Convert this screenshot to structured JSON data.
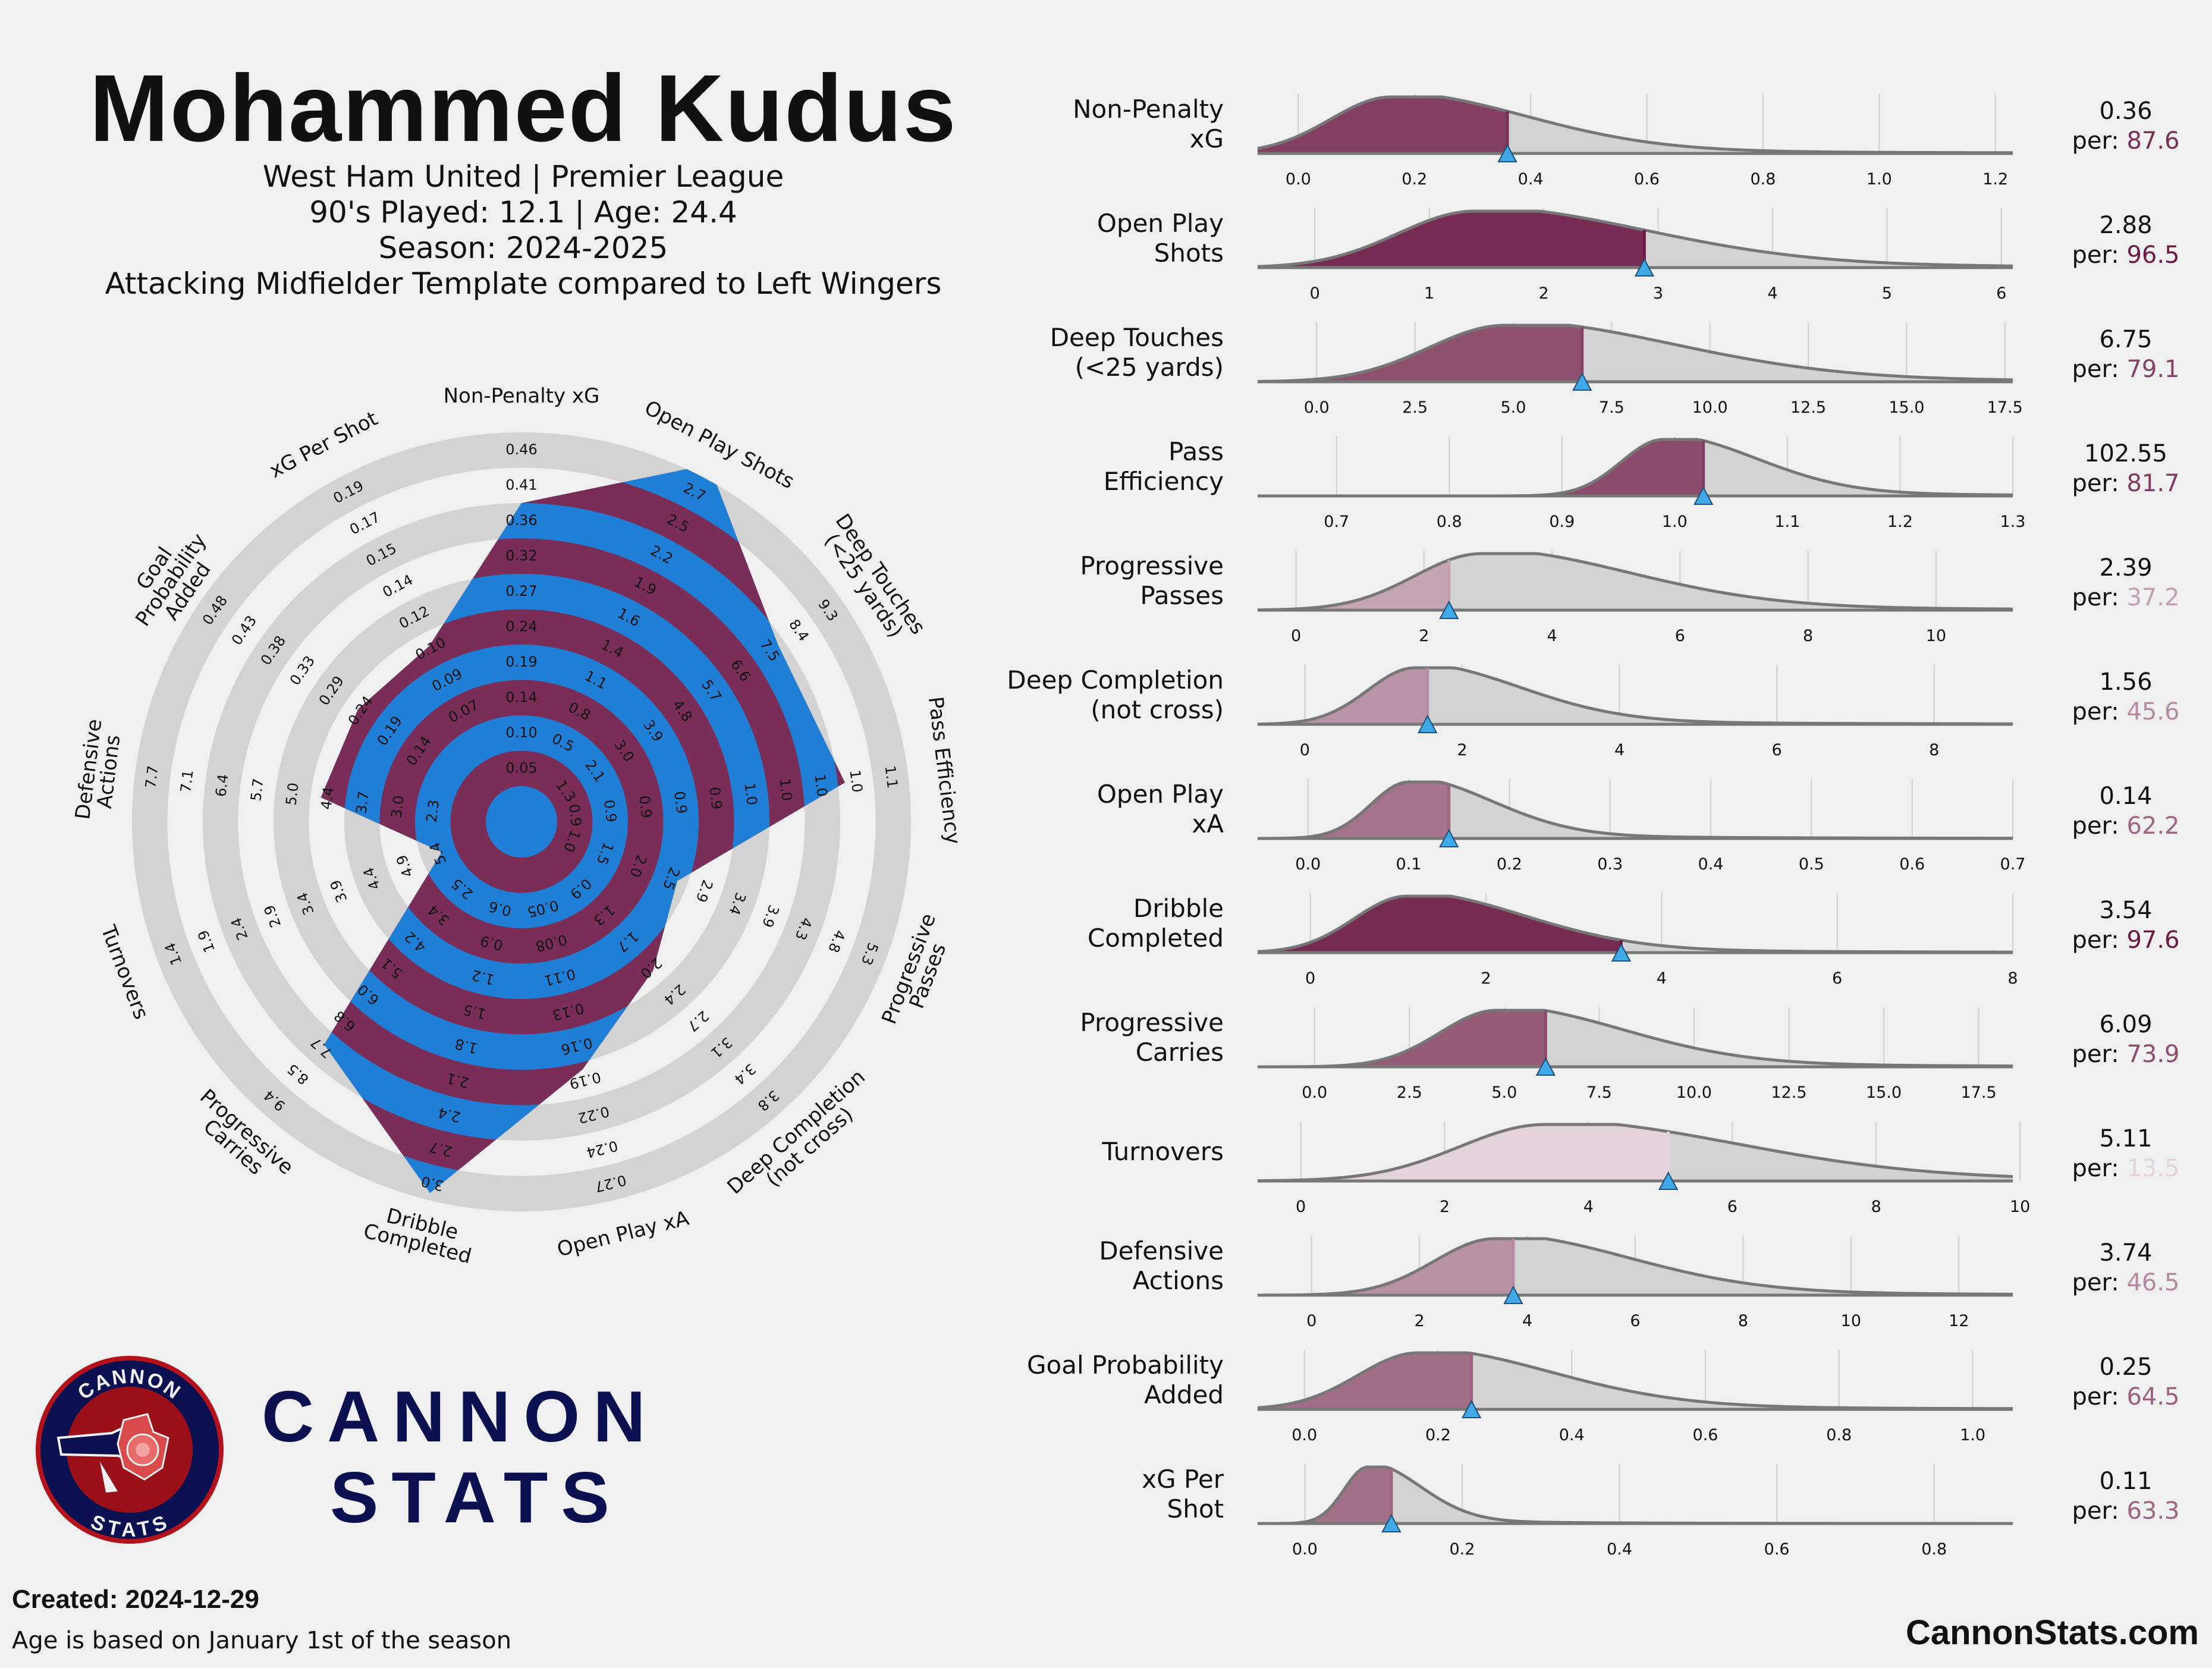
{
  "header": {
    "player_name": "Mohammed Kudus",
    "team_league": "West Ham United | Premier League",
    "played_age": "90's Played: 12.1 | Age: 24.4",
    "season": "Season: 2024-2025",
    "template": "Attacking Midfielder Template compared to Left Wingers"
  },
  "logo": {
    "badge_top": "CANNON",
    "badge_bottom": "STATS",
    "brand_line1": "CANNON",
    "brand_line2": "STATS"
  },
  "footer": {
    "created_label": "Created: 2024-12-29",
    "note": "Age is based on January 1st of the season",
    "site": "CannonStats.com"
  },
  "colors": {
    "background": "#f0f0f0",
    "maroon": "#7a2e57",
    "blue": "#1f7fd6",
    "ring_grey": "#d3d3d3",
    "marker": "#3ea9e6",
    "navy": "#0a1050",
    "badge_red": "#b3121b"
  },
  "chart_data": [
    {
      "type": "radar",
      "ring_count": 10,
      "metrics": [
        {
          "label": [
            "Non-Penalty xG"
          ],
          "ticks": [
            "0.05",
            "0.10",
            "0.14",
            "0.19",
            "0.24",
            "0.27",
            "0.32",
            "0.36",
            "0.41",
            "0.46"
          ],
          "player_level": 8.0
        },
        {
          "label": [
            "Open Play Shots"
          ],
          "ticks": [
            "0.5",
            "0.8",
            "1.1",
            "1.4",
            "1.6",
            "1.9",
            "2.2",
            "2.5",
            "2.7"
          ],
          "player_level": 10.4
        },
        {
          "label": [
            "Deep Touches",
            "(<25 yards)"
          ],
          "ticks": [
            "1.3",
            "2.1",
            "3.0",
            "3.9",
            "4.8",
            "5.7",
            "6.6",
            "7.5",
            "8.4",
            "9.3"
          ],
          "player_level": 7.8
        },
        {
          "label": [
            "Pass Efficiency"
          ],
          "ticks": [
            "0.9",
            "0.9",
            "0.9",
            "0.9",
            "0.9",
            "1.0",
            "1.0",
            "1.0",
            "1.0",
            "1.1"
          ],
          "player_level": 8.2
        },
        {
          "label": [
            "Progressive",
            "Passes"
          ],
          "ticks": [
            "1.0",
            "1.5",
            "2.0",
            "2.5",
            "2.9",
            "3.4",
            "3.9",
            "4.3",
            "4.8",
            "5.3"
          ],
          "player_level": 3.7
        },
        {
          "label": [
            "Deep Completion",
            "(not cross)"
          ],
          "ticks": [
            "0.9",
            "1.3",
            "1.7",
            "2.0",
            "2.4",
            "2.7",
            "3.1",
            "3.4",
            "3.8"
          ],
          "player_level": 4.6
        },
        {
          "label": [
            "Open Play xA"
          ],
          "ticks": [
            "0.05",
            "0.08",
            "0.11",
            "0.13",
            "0.16",
            "0.19",
            "0.22",
            "0.24",
            "0.27"
          ],
          "player_level": 6.2
        },
        {
          "label": [
            "Dribble",
            "Completed"
          ],
          "ticks": [
            "0.6",
            "0.9",
            "1.2",
            "1.5",
            "1.8",
            "2.1",
            "2.4",
            "2.7",
            "3.0"
          ],
          "player_level": 9.8
        },
        {
          "label": [
            "Progressive",
            "Carries"
          ],
          "ticks": [
            "2.5",
            "3.4",
            "4.2",
            "5.1",
            "6.0",
            "6.8",
            "7.7",
            "8.5",
            "9.4"
          ],
          "player_level": 7.4
        },
        {
          "label": [
            "Turnovers"
          ],
          "ticks": [
            "5.4",
            "4.9",
            "4.4",
            "3.9",
            "3.4",
            "2.9",
            "2.4",
            "1.9",
            "1.4"
          ],
          "player_level": 1.4
        },
        {
          "label": [
            "Defensive",
            "Actions"
          ],
          "ticks": [
            "2.3",
            "3.0",
            "3.7",
            "4.4",
            "5.0",
            "5.7",
            "6.4",
            "7.1",
            "7.7"
          ],
          "player_level": 4.7
        },
        {
          "label": [
            "Goal",
            "Probability",
            "Added"
          ],
          "ticks": [
            "0.14",
            "0.19",
            "0.24",
            "0.29",
            "0.33",
            "0.38",
            "0.43",
            "0.48"
          ],
          "player_level": 4.6
        },
        {
          "label": [
            "xG Per Shot"
          ],
          "ticks": [
            "0.07",
            "0.09",
            "0.10",
            "0.12",
            "0.14",
            "0.15",
            "0.17",
            "0.19"
          ],
          "player_level": 4.6
        }
      ]
    },
    {
      "type": "area",
      "description_kind": "percentile distribution ridgelines",
      "rows": [
        {
          "label": [
            "Non-Penalty",
            "xG"
          ],
          "value": "0.36",
          "percentile": "87.6",
          "raw": 0.36,
          "pct": 87.6,
          "xmin": -0.07,
          "xmax": 1.23,
          "peak": 0.16,
          "spread": 0.14,
          "ticks": [
            "0.0",
            "0.2",
            "0.4",
            "0.6",
            "0.8",
            "1.0",
            "1.2"
          ],
          "tick_values": [
            0,
            0.2,
            0.4,
            0.6,
            0.8,
            1.0,
            1.2
          ]
        },
        {
          "label": [
            "Open Play",
            "Shots"
          ],
          "value": "2.88",
          "percentile": "96.5",
          "raw": 2.88,
          "pct": 96.5,
          "xmin": -0.5,
          "xmax": 6.1,
          "peak": 1.4,
          "spread": 0.9,
          "ticks": [
            "0",
            "1",
            "2",
            "3",
            "4",
            "5",
            "6"
          ],
          "tick_values": [
            0,
            1,
            2,
            3,
            4,
            5,
            6
          ]
        },
        {
          "label": [
            "Deep Touches",
            "(<25 yards)"
          ],
          "value": "6.75",
          "percentile": "79.1",
          "raw": 6.75,
          "pct": 79.1,
          "xmin": -1.5,
          "xmax": 17.7,
          "peak": 4.8,
          "spread": 2.6,
          "ticks": [
            "0.0",
            "2.5",
            "5.0",
            "7.5",
            "10.0",
            "12.5",
            "15.0",
            "17.5"
          ],
          "tick_values": [
            0,
            2.5,
            5,
            7.5,
            10,
            12.5,
            15,
            17.5
          ]
        },
        {
          "label": [
            "Pass",
            "Efficiency"
          ],
          "value": "102.55",
          "percentile": "81.7",
          "raw": 1.0255,
          "pct": 81.7,
          "xmin": 0.63,
          "xmax": 1.3,
          "peak": 0.99,
          "spread": 0.05,
          "ticks": [
            "0.7",
            "0.8",
            "0.9",
            "1.0",
            "1.1",
            "1.2",
            "1.3"
          ],
          "tick_values": [
            0.7,
            0.8,
            0.9,
            1.0,
            1.1,
            1.2,
            1.3
          ]
        },
        {
          "label": [
            "Progressive",
            "Passes"
          ],
          "value": "2.39",
          "percentile": "37.2",
          "raw": 2.39,
          "pct": 37.2,
          "xmin": -0.6,
          "xmax": 11.2,
          "peak": 2.9,
          "spread": 1.4,
          "ticks": [
            "0",
            "2",
            "4",
            "6",
            "8",
            "10"
          ],
          "tick_values": [
            0,
            2,
            4,
            6,
            8,
            10
          ]
        },
        {
          "label": [
            "Deep Completion",
            "(not cross)"
          ],
          "value": "1.56",
          "percentile": "45.6",
          "raw": 1.56,
          "pct": 45.6,
          "xmin": -0.6,
          "xmax": 9.0,
          "peak": 1.4,
          "spread": 0.8,
          "ticks": [
            "0",
            "2",
            "4",
            "6",
            "8"
          ],
          "tick_values": [
            0,
            2,
            4,
            6,
            8
          ]
        },
        {
          "label": [
            "Open Play",
            "xA"
          ],
          "value": "0.14",
          "percentile": "62.2",
          "raw": 0.14,
          "pct": 62.2,
          "xmin": -0.05,
          "xmax": 0.7,
          "peak": 0.1,
          "spread": 0.05,
          "ticks": [
            "0.0",
            "0.1",
            "0.2",
            "0.3",
            "0.4",
            "0.5",
            "0.6",
            "0.7"
          ],
          "tick_values": [
            0,
            0.1,
            0.2,
            0.3,
            0.4,
            0.5,
            0.6,
            0.7
          ]
        },
        {
          "label": [
            "Dribble",
            "Completed"
          ],
          "value": "3.54",
          "percentile": "97.6",
          "raw": 3.54,
          "pct": 97.6,
          "xmin": -0.6,
          "xmax": 8.0,
          "peak": 1.1,
          "spread": 0.8,
          "ticks": [
            "0",
            "2",
            "4",
            "6",
            "8"
          ],
          "tick_values": [
            0,
            2,
            4,
            6,
            8
          ]
        },
        {
          "label": [
            "Progressive",
            "Carries"
          ],
          "value": "6.09",
          "percentile": "73.9",
          "raw": 6.09,
          "pct": 73.9,
          "xmin": -1.5,
          "xmax": 18.4,
          "peak": 4.8,
          "spread": 2.0,
          "ticks": [
            "0.0",
            "2.5",
            "5.0",
            "7.5",
            "10.0",
            "12.5",
            "15.0",
            "17.5"
          ],
          "tick_values": [
            0,
            2.5,
            5,
            7.5,
            10,
            12.5,
            15,
            17.5
          ]
        },
        {
          "label": [
            "Turnovers"
          ],
          "value": "5.11",
          "percentile": "13.5",
          "raw": 5.11,
          "pct": 13.5,
          "xmin": -0.6,
          "xmax": 9.9,
          "peak": 3.4,
          "spread": 1.6,
          "ticks": [
            "0",
            "2",
            "4",
            "6",
            "8",
            "10"
          ],
          "tick_values": [
            0,
            2,
            4,
            6,
            8,
            10
          ]
        },
        {
          "label": [
            "Defensive",
            "Actions"
          ],
          "value": "3.74",
          "percentile": "46.5",
          "raw": 3.74,
          "pct": 46.5,
          "xmin": -1.0,
          "xmax": 13.0,
          "peak": 3.4,
          "spread": 1.5,
          "ticks": [
            "0",
            "2",
            "4",
            "6",
            "8",
            "10",
            "12"
          ],
          "tick_values": [
            0,
            2,
            4,
            6,
            8,
            10,
            12
          ]
        },
        {
          "label": [
            "Goal Probability",
            "Added"
          ],
          "value": "0.25",
          "percentile": "64.5",
          "raw": 0.25,
          "pct": 64.5,
          "xmin": -0.07,
          "xmax": 1.06,
          "peak": 0.17,
          "spread": 0.12,
          "ticks": [
            "0.0",
            "0.2",
            "0.4",
            "0.6",
            "0.8",
            "1.0"
          ],
          "tick_values": [
            0,
            0.2,
            0.4,
            0.6,
            0.8,
            1.0
          ]
        },
        {
          "label": [
            "xG Per",
            "Shot"
          ],
          "value": "0.11",
          "percentile": "63.3",
          "raw": 0.11,
          "pct": 63.3,
          "xmin": -0.06,
          "xmax": 0.9,
          "peak": 0.08,
          "spread": 0.04,
          "ticks": [
            "0.0",
            "0.2",
            "0.4",
            "0.6",
            "0.8"
          ],
          "tick_values": [
            0,
            0.2,
            0.4,
            0.6,
            0.8
          ]
        }
      ],
      "per_label": "per:"
    }
  ]
}
